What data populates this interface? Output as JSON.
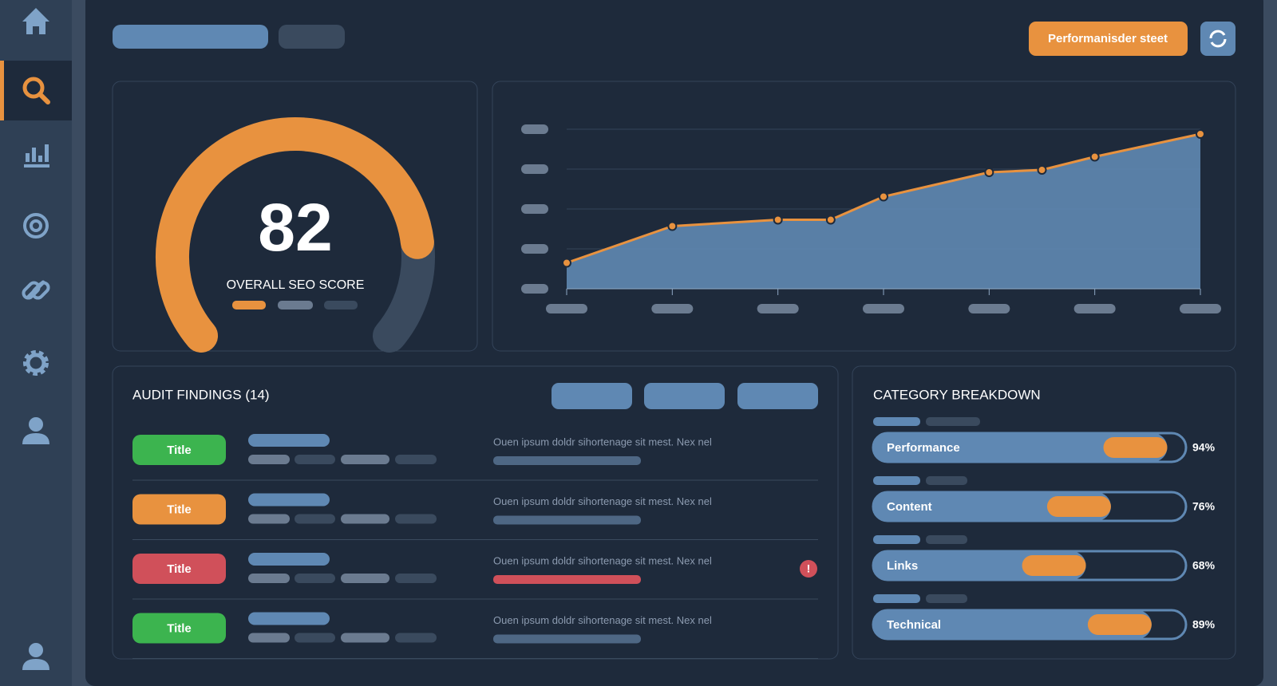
{
  "header": {
    "button": "Performanisder steet"
  },
  "gauge": {
    "value": 82,
    "range": [
      0,
      100
    ],
    "label": "OVERALL SEO SCORE"
  },
  "chart_data": {
    "type": "area",
    "x": [
      0,
      1,
      2,
      2.5,
      3,
      4,
      4.5,
      5,
      6
    ],
    "values": [
      0.65,
      1.57,
      1.73,
      1.73,
      2.31,
      2.92,
      2.98,
      3.31,
      3.88
    ],
    "xlim": [
      0,
      6
    ],
    "ylim": [
      0,
      4
    ],
    "xticks": [
      0,
      1,
      2,
      3,
      4,
      5,
      6
    ],
    "yticks": [
      0,
      1,
      2,
      3,
      4
    ],
    "color": "#e8923f",
    "fill": "#5f88b3",
    "grid": true
  },
  "audit": {
    "title": "AUDIT FINDINGS (14)",
    "rows": [
      {
        "badge": "Title",
        "color": "#3cb44f",
        "text": "Ouen ipsum doldr sihortenage sit mest. Nex nel"
      },
      {
        "badge": "Title",
        "color": "#e8923f",
        "text": "Ouen ipsum doldr sihortenage sit mest. Nex nel"
      },
      {
        "badge": "Title",
        "color": "#d0505a",
        "text": "Ouen ipsum doldr sihortenage sit mest. Nex nel",
        "alert": "!"
      },
      {
        "badge": "Title",
        "color": "#3cb44f",
        "text": "Ouen ipsum doldr sihortenage sit mest. Nex nel"
      }
    ]
  },
  "categories": {
    "title": "CATEGORY BREAKDOWN",
    "range": [
      0,
      100
    ],
    "items": [
      {
        "name": "Performance",
        "value": 94,
        "value_label": "94%"
      },
      {
        "name": "Content",
        "value": 76,
        "value_label": "76%"
      },
      {
        "name": "Links",
        "value": 68,
        "value_label": "68%"
      },
      {
        "name": "Technical",
        "value": 89,
        "value_label": "89%"
      }
    ]
  }
}
